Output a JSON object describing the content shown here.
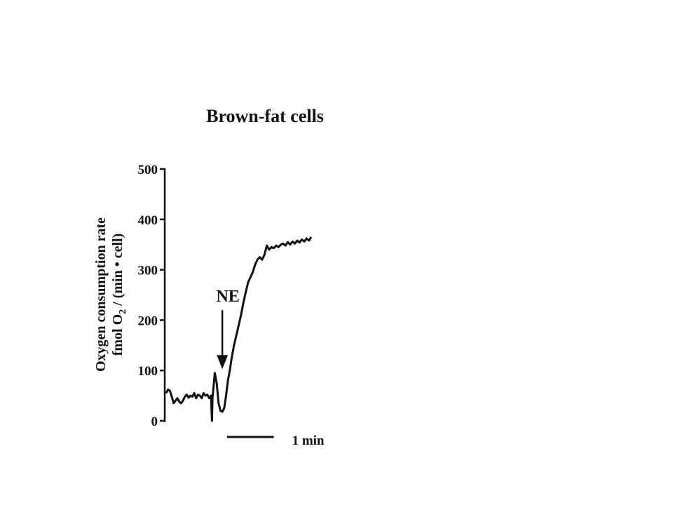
{
  "chart_data": {
    "type": "line",
    "title": "Brown-fat cells",
    "ylabel_line1": "Oxygen consumption rate",
    "ylabel_line2_pre": "fmol O",
    "ylabel_line2_sub": "2",
    "ylabel_line2_post": " / (min • cell)",
    "ylim": [
      0,
      500
    ],
    "yticks": [
      "0",
      "100",
      "200",
      "300",
      "400",
      "500"
    ],
    "xlim": [
      0,
      3.1
    ],
    "grid": false,
    "annotation": {
      "label": "NE",
      "x": 1.2,
      "y": 100
    },
    "scale_bar": {
      "label": "1 min",
      "x_start": 1.3,
      "length_min": 1
    },
    "series": [
      {
        "x": [
          0,
          0.04,
          0.08,
          0.12,
          0.16,
          0.2,
          0.24,
          0.28,
          0.32,
          0.36,
          0.4,
          0.44,
          0.48,
          0.52,
          0.56,
          0.6,
          0.64,
          0.68,
          0.72,
          0.76,
          0.8,
          0.84,
          0.88,
          0.92,
          0.96,
          0.97,
          0.98,
          0.99,
          1.0,
          1.04,
          1.08,
          1.12,
          1.16,
          1.2,
          1.24,
          1.28,
          1.32,
          1.36,
          1.4,
          1.45,
          1.5,
          1.55,
          1.6,
          1.65,
          1.7,
          1.75,
          1.8,
          1.85,
          1.9,
          1.95,
          2.0,
          2.05,
          2.1,
          2.15,
          2.2,
          2.25,
          2.3,
          2.35,
          2.4,
          2.45,
          2.5,
          2.55,
          2.6,
          2.65,
          2.7,
          2.75,
          2.8,
          2.85,
          2.9,
          2.95,
          3.0,
          3.05,
          3.1
        ],
        "y": [
          55,
          62,
          60,
          48,
          35,
          40,
          45,
          38,
          35,
          40,
          48,
          52,
          46,
          50,
          48,
          55,
          45,
          52,
          50,
          45,
          55,
          50,
          52,
          45,
          50,
          20,
          0,
          45,
          55,
          95,
          75,
          35,
          20,
          18,
          25,
          50,
          80,
          100,
          125,
          150,
          170,
          190,
          210,
          235,
          255,
          275,
          285,
          295,
          310,
          320,
          325,
          320,
          330,
          348,
          340,
          345,
          343,
          348,
          345,
          350,
          352,
          348,
          355,
          350,
          356,
          352,
          358,
          354,
          360,
          356,
          362,
          358,
          365
        ]
      }
    ]
  }
}
